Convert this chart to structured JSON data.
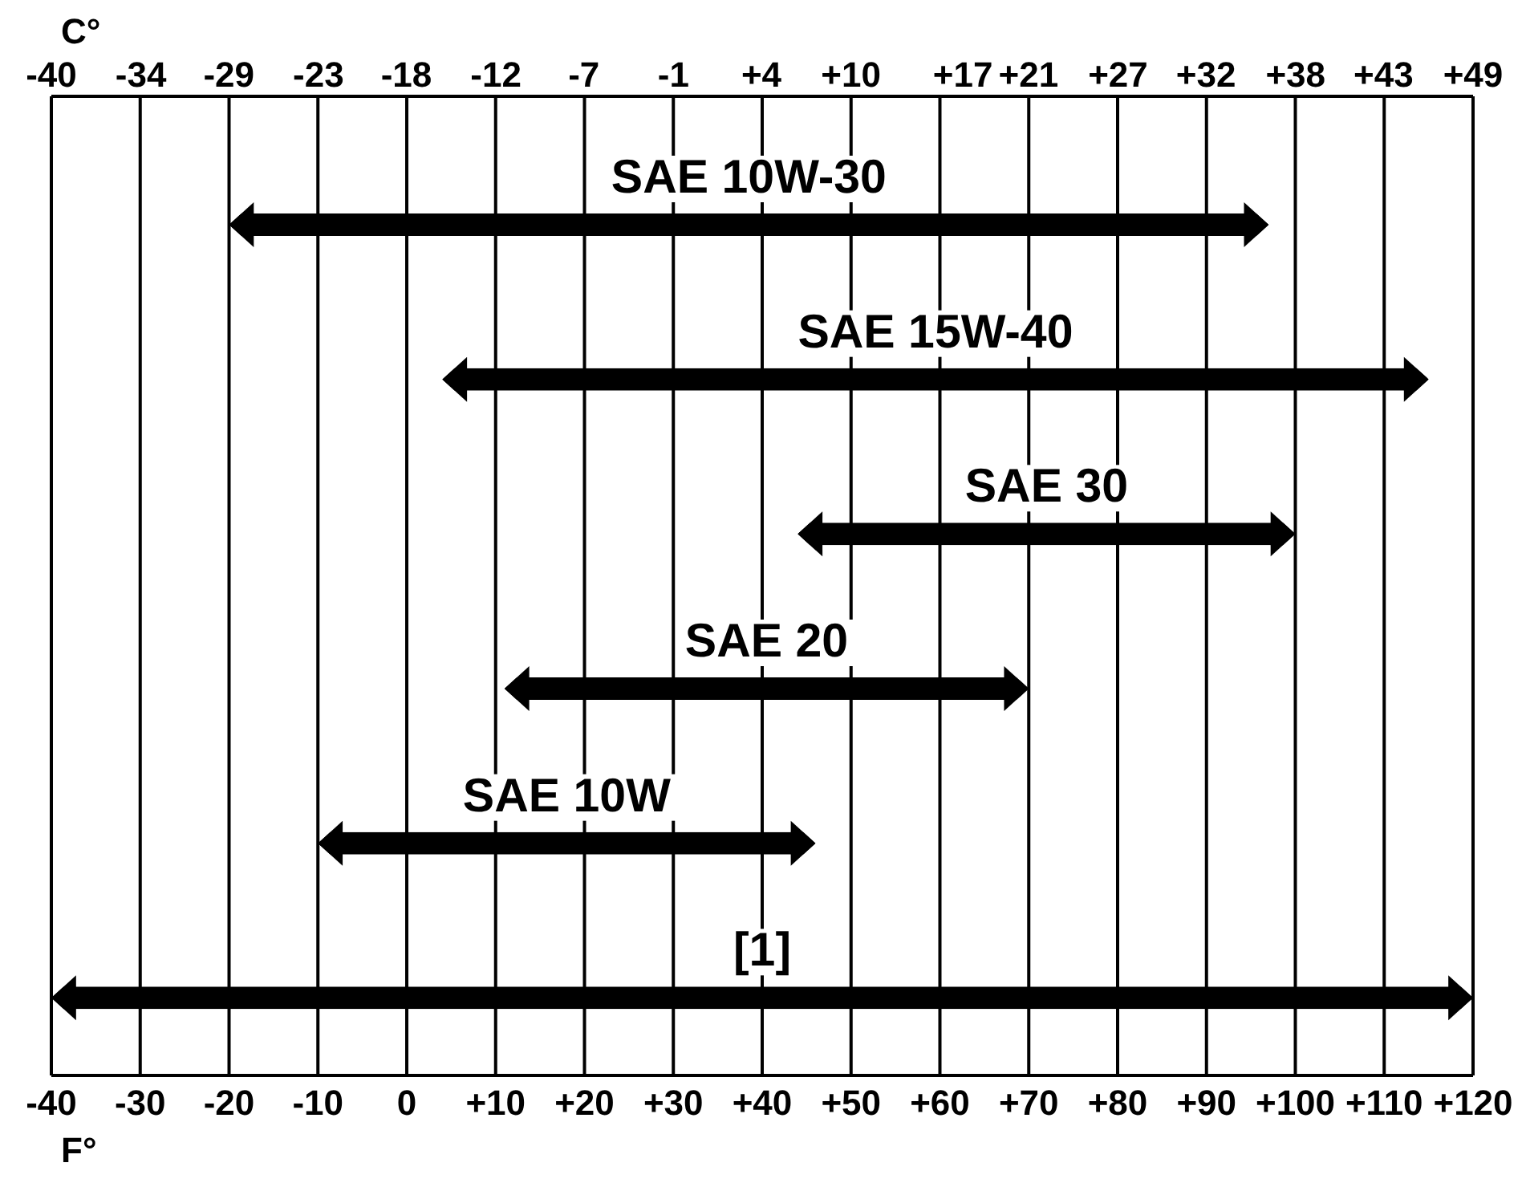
{
  "chart_data": {
    "type": "bar",
    "orientation": "horizontal",
    "xlabel": "F°",
    "x2label": "C°",
    "categories": [
      "SAE 10W-30",
      "SAE 15W-40",
      "SAE 30",
      "SAE 20",
      "SAE 10W",
      "[1]"
    ],
    "base": [
      -20,
      4,
      44,
      11,
      -10,
      -40
    ],
    "values": [
      117,
      111,
      56,
      59,
      56,
      160
    ],
    "color": "#000000",
    "xlim": [
      -40,
      120
    ],
    "xticks": [
      -40,
      -30,
      -20,
      -10,
      0,
      {
        "value": 10,
        "label": "+10"
      },
      {
        "value": 20,
        "label": "+20"
      },
      {
        "value": 30,
        "label": "+30"
      },
      {
        "value": 40,
        "label": "+40"
      },
      {
        "value": 50,
        "label": "+50"
      },
      {
        "value": 60,
        "label": "+60"
      },
      {
        "value": 70,
        "label": "+70"
      },
      {
        "value": 80,
        "label": "+80"
      },
      {
        "value": 90,
        "label": "+90"
      },
      {
        "value": 100,
        "label": "+100"
      },
      {
        "value": 110,
        "label": "+110"
      },
      {
        "value": 120,
        "label": "+120"
      }
    ],
    "x2lim": [
      -40,
      48.9
    ],
    "x2ticks": [
      -40,
      {
        "value": -34.4,
        "label": "-34"
      },
      {
        "value": -28.9,
        "label": "-29"
      },
      {
        "value": -23.3,
        "label": "-23"
      },
      {
        "value": -17.8,
        "label": "-18"
      },
      {
        "value": -12.2,
        "label": "-12"
      },
      {
        "value": -6.7,
        "label": "-7"
      },
      {
        "value": -1.1,
        "label": "-1"
      },
      {
        "value": 4.4,
        "label": "+4"
      },
      {
        "value": 10,
        "label": "+10"
      },
      {
        "value": 17,
        "label": "+17"
      },
      {
        "value": 21.1,
        "label": "+21"
      },
      {
        "value": 26.7,
        "label": "+27"
      },
      {
        "value": 32.2,
        "label": "+32"
      },
      {
        "value": 37.8,
        "label": "+38"
      },
      {
        "value": 43.3,
        "label": "+43"
      },
      {
        "value": 48.9,
        "label": "+49"
      }
    ],
    "grid": "x"
  }
}
